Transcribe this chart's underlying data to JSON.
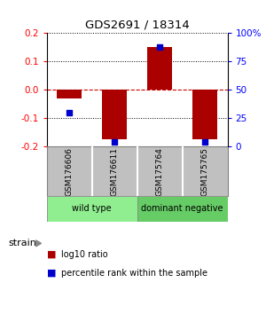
{
  "title": "GDS2691 / 18314",
  "samples": [
    "GSM176606",
    "GSM176611",
    "GSM175764",
    "GSM175765"
  ],
  "log10_ratios": [
    -0.03,
    -0.175,
    0.15,
    -0.175
  ],
  "percentile_ranks": [
    30,
    4,
    88,
    4
  ],
  "ylim": [
    -0.2,
    0.2
  ],
  "yticks_left": [
    -0.2,
    -0.1,
    0.0,
    0.1,
    0.2
  ],
  "yticks_right": [
    0,
    25,
    50,
    75,
    100
  ],
  "groups": [
    {
      "label": "wild type",
      "samples": [
        0,
        1
      ],
      "color": "#90EE90"
    },
    {
      "label": "dominant negative",
      "samples": [
        2,
        3
      ],
      "color": "#66CC66"
    }
  ],
  "bar_color": "#AA0000",
  "dot_color": "#0000CC",
  "zero_line_color": "#CC0000",
  "background_color": "#FFFFFF",
  "label_area_color": "#C0C0C0",
  "strain_label": "strain",
  "legend_items": [
    {
      "color": "#AA0000",
      "label": "log10 ratio"
    },
    {
      "color": "#0000CC",
      "label": "percentile rank within the sample"
    }
  ]
}
